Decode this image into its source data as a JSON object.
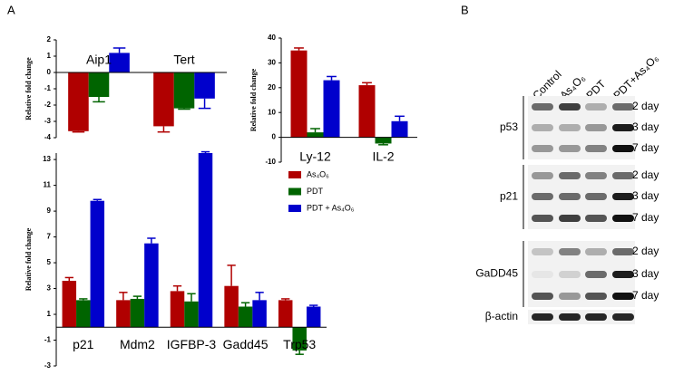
{
  "panels": [
    "A",
    "B"
  ],
  "chart_data": [
    {
      "type": "bar",
      "y_label": "Relative fold change",
      "categories": [
        "Aip1",
        "Tert"
      ],
      "series": [
        {
          "color": "#b00000",
          "values": [
            -3.6,
            -3.3
          ],
          "errors": [
            0.05,
            0.35
          ]
        },
        {
          "color": "#006400",
          "values": [
            -1.5,
            -2.2
          ],
          "errors": [
            0.3,
            0.05
          ]
        },
        {
          "color": "#0000cc",
          "values": [
            1.2,
            -1.6
          ],
          "errors": [
            0.3,
            0.6
          ]
        }
      ],
      "ylim": [
        -4,
        2
      ],
      "yticks": [
        -4,
        -3,
        -2,
        -1,
        0,
        1,
        2
      ]
    },
    {
      "type": "bar",
      "y_label": "Relative fold change",
      "categories": [
        "Ly-12",
        "IL-2"
      ],
      "series": [
        {
          "color": "#b00000",
          "values": [
            35,
            21
          ],
          "errors": [
            1,
            1
          ]
        },
        {
          "color": "#006400",
          "values": [
            2,
            -2.5
          ],
          "errors": [
            1.5,
            0.5
          ]
        },
        {
          "color": "#0000cc",
          "values": [
            23,
            6.5
          ],
          "errors": [
            1.5,
            2
          ]
        }
      ],
      "ylim": [
        -10,
        40
      ],
      "yticks": [
        -10,
        0,
        10,
        20,
        30,
        40
      ]
    },
    {
      "type": "bar",
      "y_label": "Relative fold change",
      "categories": [
        "p21",
        "Mdm2",
        "IGFBP-3",
        "Gadd45",
        "Trp53"
      ],
      "series": [
        {
          "name": "As₄O₆",
          "color": "#b00000",
          "values": [
            3.6,
            2.1,
            2.8,
            3.2,
            2.1
          ],
          "errors": [
            0.25,
            0.6,
            0.4,
            1.6,
            0.1
          ]
        },
        {
          "name": "PDT",
          "color": "#006400",
          "values": [
            2.1,
            2.2,
            2.0,
            1.6,
            -1.8
          ],
          "errors": [
            0.1,
            0.2,
            0.6,
            0.3,
            0.3
          ]
        },
        {
          "name": "PDT + As₄O₆",
          "color": "#0000cc",
          "values": [
            9.8,
            6.5,
            13.5,
            2.1,
            1.6
          ],
          "errors": [
            0.1,
            0.4,
            0.1,
            0.6,
            0.1
          ]
        }
      ],
      "ylim": [
        -3,
        13.5
      ],
      "yticks": [
        -3,
        -1,
        1,
        3,
        5,
        7,
        9,
        11,
        13
      ],
      "legend": true
    }
  ],
  "blot": {
    "columns": [
      "Control",
      "As₄O₆",
      "PDT",
      "PDT+As₄O₆"
    ],
    "groups": [
      {
        "name": "p53",
        "times": [
          "2 day",
          "3 day",
          "7 day"
        ]
      },
      {
        "name": "p21",
        "times": [
          "2 day",
          "3 day",
          "7 day"
        ]
      },
      {
        "name": "GaDD45",
        "times": [
          "2 day",
          "3 day",
          "7 day"
        ]
      }
    ],
    "loading_control": "β-actin"
  }
}
